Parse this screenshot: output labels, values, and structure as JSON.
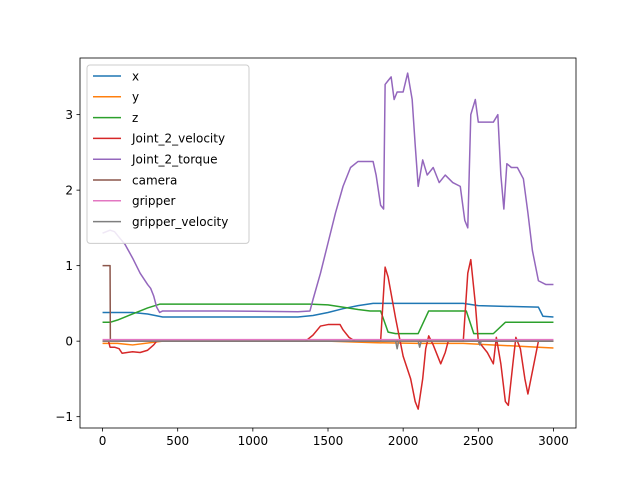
{
  "chart_data": {
    "type": "line",
    "title": "",
    "xlabel": "",
    "ylabel": "",
    "xlim": [
      -150,
      3150
    ],
    "ylim": [
      -1.15,
      3.75
    ],
    "xticks": [
      0,
      500,
      1000,
      1500,
      2000,
      2500,
      3000
    ],
    "yticks": [
      -1,
      0,
      1,
      2,
      3
    ],
    "grid": false,
    "legend_position": "upper-left",
    "series": [
      {
        "name": "x",
        "color": "#1f77b4",
        "points": [
          [
            0,
            0.38
          ],
          [
            200,
            0.38
          ],
          [
            300,
            0.36
          ],
          [
            350,
            0.34
          ],
          [
            400,
            0.32
          ],
          [
            1300,
            0.32
          ],
          [
            1400,
            0.34
          ],
          [
            1500,
            0.38
          ],
          [
            1600,
            0.43
          ],
          [
            1700,
            0.47
          ],
          [
            1800,
            0.5
          ],
          [
            2400,
            0.5
          ],
          [
            2500,
            0.47
          ],
          [
            2900,
            0.45
          ],
          [
            2930,
            0.33
          ],
          [
            3000,
            0.32
          ]
        ]
      },
      {
        "name": "y",
        "color": "#ff7f0e",
        "points": [
          [
            0,
            -0.03
          ],
          [
            100,
            -0.03
          ],
          [
            200,
            -0.05
          ],
          [
            400,
            0.0
          ],
          [
            1300,
            0.0
          ],
          [
            1500,
            0.0
          ],
          [
            1800,
            -0.02
          ],
          [
            2100,
            -0.03
          ],
          [
            2400,
            -0.03
          ],
          [
            2600,
            -0.05
          ],
          [
            2900,
            -0.08
          ],
          [
            3000,
            -0.09
          ]
        ]
      },
      {
        "name": "z",
        "color": "#2ca02c",
        "points": [
          [
            0,
            0.25
          ],
          [
            50,
            0.25
          ],
          [
            100,
            0.28
          ],
          [
            200,
            0.36
          ],
          [
            300,
            0.44
          ],
          [
            380,
            0.49
          ],
          [
            1380,
            0.49
          ],
          [
            1500,
            0.48
          ],
          [
            1700,
            0.42
          ],
          [
            1780,
            0.4
          ],
          [
            1850,
            0.4
          ],
          [
            1900,
            0.12
          ],
          [
            1950,
            0.1
          ],
          [
            2100,
            0.1
          ],
          [
            2170,
            0.4
          ],
          [
            2420,
            0.4
          ],
          [
            2470,
            0.1
          ],
          [
            2500,
            0.1
          ],
          [
            2600,
            0.1
          ],
          [
            2680,
            0.25
          ],
          [
            3000,
            0.25
          ]
        ]
      },
      {
        "name": "Joint_2_velocity",
        "color": "#d62728",
        "points": [
          [
            0,
            0
          ],
          [
            40,
            0
          ],
          [
            50,
            -0.08
          ],
          [
            80,
            -0.08
          ],
          [
            110,
            -0.1
          ],
          [
            130,
            -0.16
          ],
          [
            200,
            -0.14
          ],
          [
            250,
            -0.15
          ],
          [
            300,
            -0.12
          ],
          [
            340,
            -0.05
          ],
          [
            360,
            0
          ],
          [
            1350,
            0
          ],
          [
            1400,
            0.08
          ],
          [
            1450,
            0.2
          ],
          [
            1500,
            0.22
          ],
          [
            1580,
            0.22
          ],
          [
            1600,
            0.15
          ],
          [
            1640,
            0.05
          ],
          [
            1680,
            0
          ],
          [
            1850,
            0
          ],
          [
            1880,
            0.98
          ],
          [
            1900,
            0.85
          ],
          [
            1950,
            0.3
          ],
          [
            2000,
            -0.2
          ],
          [
            2050,
            -0.5
          ],
          [
            2080,
            -0.8
          ],
          [
            2100,
            -0.9
          ],
          [
            2130,
            -0.5
          ],
          [
            2150,
            -0.1
          ],
          [
            2170,
            0.07
          ],
          [
            2200,
            -0.05
          ],
          [
            2250,
            -0.3
          ],
          [
            2280,
            -0.15
          ],
          [
            2300,
            0
          ],
          [
            2400,
            0
          ],
          [
            2430,
            0.9
          ],
          [
            2450,
            1.08
          ],
          [
            2480,
            0.5
          ],
          [
            2500,
            0
          ],
          [
            2560,
            -0.15
          ],
          [
            2600,
            -0.3
          ],
          [
            2620,
            0.05
          ],
          [
            2650,
            -0.3
          ],
          [
            2680,
            -0.8
          ],
          [
            2700,
            -0.85
          ],
          [
            2730,
            -0.3
          ],
          [
            2750,
            0.05
          ],
          [
            2780,
            -0.1
          ],
          [
            2810,
            -0.5
          ],
          [
            2830,
            -0.7
          ],
          [
            2870,
            -0.3
          ],
          [
            2900,
            0
          ],
          [
            2950,
            0
          ],
          [
            3000,
            0
          ]
        ]
      },
      {
        "name": "Joint_2_torque",
        "color": "#9467bd",
        "points": [
          [
            0,
            1.43
          ],
          [
            50,
            1.47
          ],
          [
            80,
            1.45
          ],
          [
            100,
            1.4
          ],
          [
            150,
            1.28
          ],
          [
            200,
            1.1
          ],
          [
            250,
            0.9
          ],
          [
            300,
            0.75
          ],
          [
            320,
            0.7
          ],
          [
            340,
            0.6
          ],
          [
            360,
            0.45
          ],
          [
            380,
            0.38
          ],
          [
            400,
            0.4
          ],
          [
            800,
            0.4
          ],
          [
            1300,
            0.39
          ],
          [
            1380,
            0.4
          ],
          [
            1400,
            0.55
          ],
          [
            1450,
            0.9
          ],
          [
            1500,
            1.3
          ],
          [
            1550,
            1.7
          ],
          [
            1600,
            2.05
          ],
          [
            1650,
            2.3
          ],
          [
            1700,
            2.38
          ],
          [
            1800,
            2.38
          ],
          [
            1820,
            2.2
          ],
          [
            1850,
            1.8
          ],
          [
            1870,
            1.75
          ],
          [
            1880,
            3.4
          ],
          [
            1900,
            3.45
          ],
          [
            1920,
            3.5
          ],
          [
            1940,
            3.2
          ],
          [
            1960,
            3.3
          ],
          [
            2000,
            3.3
          ],
          [
            2030,
            3.55
          ],
          [
            2060,
            3.2
          ],
          [
            2080,
            2.6
          ],
          [
            2100,
            2.05
          ],
          [
            2130,
            2.4
          ],
          [
            2160,
            2.2
          ],
          [
            2200,
            2.3
          ],
          [
            2240,
            2.1
          ],
          [
            2280,
            2.2
          ],
          [
            2330,
            2.1
          ],
          [
            2380,
            2.05
          ],
          [
            2410,
            1.6
          ],
          [
            2430,
            1.5
          ],
          [
            2450,
            3.0
          ],
          [
            2480,
            3.2
          ],
          [
            2500,
            2.9
          ],
          [
            2600,
            2.9
          ],
          [
            2630,
            3.0
          ],
          [
            2650,
            2.2
          ],
          [
            2670,
            1.75
          ],
          [
            2690,
            2.35
          ],
          [
            2720,
            2.3
          ],
          [
            2760,
            2.3
          ],
          [
            2800,
            2.15
          ],
          [
            2830,
            1.7
          ],
          [
            2860,
            1.2
          ],
          [
            2900,
            0.8
          ],
          [
            2950,
            0.75
          ],
          [
            3000,
            0.75
          ]
        ]
      },
      {
        "name": "camera",
        "color": "#8c564b",
        "points": [
          [
            0,
            1.0
          ],
          [
            50,
            1.0
          ],
          [
            52,
            0.0
          ],
          [
            3000,
            0.0
          ]
        ]
      },
      {
        "name": "gripper",
        "color": "#e377c2",
        "points": [
          [
            0,
            0.02
          ],
          [
            3000,
            0.02
          ]
        ]
      },
      {
        "name": "gripper_velocity",
        "color": "#7f7f7f",
        "points": [
          [
            0,
            0
          ],
          [
            1950,
            0
          ],
          [
            1960,
            -0.1
          ],
          [
            1970,
            0
          ],
          [
            2100,
            0
          ],
          [
            2110,
            -0.08
          ],
          [
            2120,
            0
          ],
          [
            2500,
            0
          ],
          [
            2510,
            -0.05
          ],
          [
            2520,
            0
          ],
          [
            3000,
            0
          ]
        ]
      }
    ]
  }
}
